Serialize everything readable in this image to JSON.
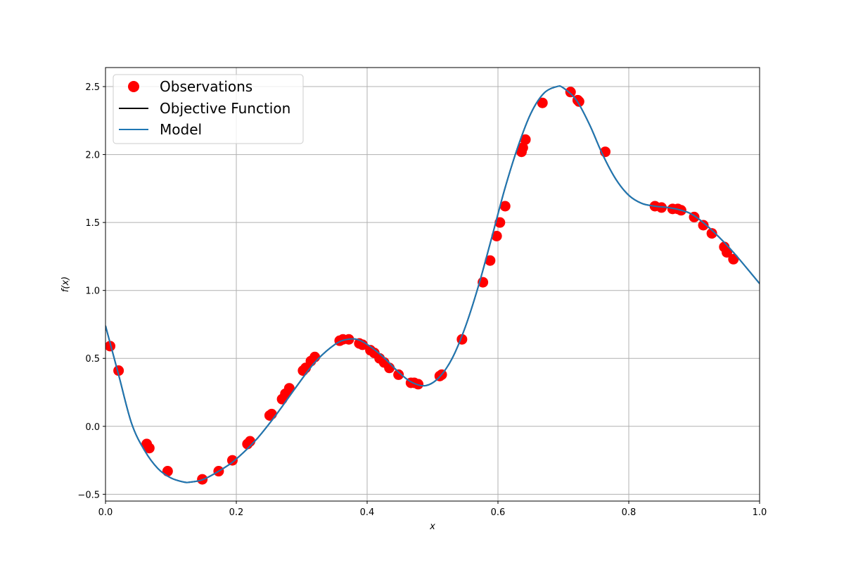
{
  "chart_data": {
    "type": "line",
    "title": "",
    "xlabel": "x",
    "ylabel": "f(x)",
    "xlim": [
      0.0,
      1.0
    ],
    "ylim": [
      -0.55,
      2.64
    ],
    "xticks": [
      "0.0",
      "0.2",
      "0.4",
      "0.6",
      "0.8",
      "1.0"
    ],
    "yticks": [
      "−0.5",
      "0.0",
      "0.5",
      "1.0",
      "1.5",
      "2.0",
      "2.5"
    ],
    "grid": true,
    "legend_position": "top-left",
    "legend": [
      "Observations",
      "Objective Function",
      "Model"
    ],
    "colors": {
      "observations": "#ff0000",
      "objective": "#000000",
      "model": "#1f77b4",
      "grid": "#b0b0b0"
    },
    "series": [
      {
        "name": "Objective Function",
        "kind": "line",
        "x": [
          0.0,
          0.02,
          0.04,
          0.06,
          0.08,
          0.1,
          0.12,
          0.13,
          0.15,
          0.18,
          0.2,
          0.23,
          0.26,
          0.29,
          0.32,
          0.35,
          0.37,
          0.39,
          0.42,
          0.45,
          0.47,
          0.49,
          0.51,
          0.53,
          0.55,
          0.57,
          0.59,
          0.61,
          0.63,
          0.65,
          0.67,
          0.69,
          0.7,
          0.72,
          0.74,
          0.76,
          0.78,
          0.8,
          0.82,
          0.84,
          0.86,
          0.88,
          0.9,
          0.93,
          0.96,
          1.0
        ],
        "y": [
          0.74,
          0.38,
          0.02,
          -0.18,
          -0.31,
          -0.38,
          -0.41,
          -0.41,
          -0.39,
          -0.31,
          -0.24,
          -0.1,
          0.08,
          0.28,
          0.47,
          0.6,
          0.64,
          0.63,
          0.53,
          0.39,
          0.32,
          0.3,
          0.36,
          0.5,
          0.73,
          1.03,
          1.38,
          1.74,
          2.05,
          2.3,
          2.45,
          2.5,
          2.49,
          2.4,
          2.22,
          2.0,
          1.82,
          1.7,
          1.64,
          1.62,
          1.61,
          1.59,
          1.55,
          1.43,
          1.28,
          1.05
        ]
      },
      {
        "name": "Model",
        "kind": "line",
        "x": [
          0.0,
          0.02,
          0.04,
          0.06,
          0.08,
          0.1,
          0.12,
          0.13,
          0.15,
          0.18,
          0.2,
          0.23,
          0.26,
          0.29,
          0.32,
          0.35,
          0.37,
          0.39,
          0.42,
          0.45,
          0.47,
          0.49,
          0.51,
          0.53,
          0.55,
          0.57,
          0.59,
          0.61,
          0.63,
          0.65,
          0.67,
          0.69,
          0.7,
          0.72,
          0.74,
          0.76,
          0.78,
          0.8,
          0.82,
          0.84,
          0.86,
          0.88,
          0.9,
          0.93,
          0.96,
          1.0
        ],
        "y": [
          0.74,
          0.38,
          0.02,
          -0.18,
          -0.31,
          -0.38,
          -0.41,
          -0.41,
          -0.39,
          -0.31,
          -0.24,
          -0.1,
          0.08,
          0.28,
          0.47,
          0.6,
          0.64,
          0.63,
          0.53,
          0.39,
          0.32,
          0.3,
          0.36,
          0.5,
          0.73,
          1.03,
          1.38,
          1.74,
          2.05,
          2.3,
          2.45,
          2.5,
          2.49,
          2.4,
          2.22,
          2.0,
          1.82,
          1.7,
          1.64,
          1.62,
          1.61,
          1.59,
          1.55,
          1.43,
          1.28,
          1.05
        ]
      },
      {
        "name": "Observations",
        "kind": "scatter",
        "x": [
          0.007,
          0.02,
          0.063,
          0.067,
          0.095,
          0.148,
          0.173,
          0.194,
          0.217,
          0.221,
          0.251,
          0.254,
          0.27,
          0.275,
          0.281,
          0.302,
          0.306,
          0.314,
          0.32,
          0.358,
          0.363,
          0.372,
          0.388,
          0.393,
          0.405,
          0.411,
          0.419,
          0.426,
          0.434,
          0.448,
          0.467,
          0.472,
          0.478,
          0.511,
          0.514,
          0.545,
          0.577,
          0.588,
          0.598,
          0.603,
          0.611,
          0.636,
          0.638,
          0.642,
          0.668,
          0.711,
          0.722,
          0.724,
          0.764,
          0.84,
          0.85,
          0.867,
          0.875,
          0.88,
          0.9,
          0.914,
          0.927,
          0.946,
          0.95,
          0.96
        ],
        "y": [
          0.59,
          0.41,
          -0.13,
          -0.16,
          -0.33,
          -0.39,
          -0.33,
          -0.25,
          -0.13,
          -0.11,
          0.08,
          0.09,
          0.2,
          0.24,
          0.28,
          0.41,
          0.43,
          0.48,
          0.51,
          0.63,
          0.64,
          0.64,
          0.61,
          0.6,
          0.56,
          0.54,
          0.5,
          0.47,
          0.43,
          0.38,
          0.32,
          0.32,
          0.31,
          0.37,
          0.38,
          0.64,
          1.06,
          1.22,
          1.4,
          1.5,
          1.62,
          2.02,
          2.05,
          2.11,
          2.38,
          2.46,
          2.4,
          2.39,
          2.02,
          1.62,
          1.61,
          1.6,
          1.6,
          1.59,
          1.54,
          1.48,
          1.42,
          1.32,
          1.28,
          1.23
        ]
      }
    ]
  }
}
